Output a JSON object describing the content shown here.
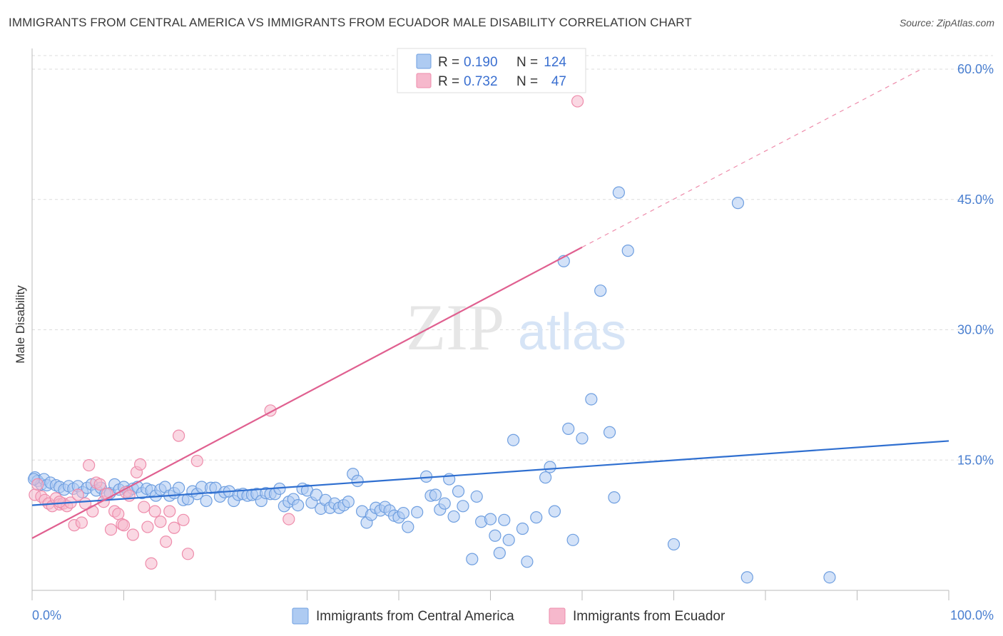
{
  "title": "IMMIGRANTS FROM CENTRAL AMERICA VS IMMIGRANTS FROM ECUADOR MALE DISABILITY CORRELATION CHART",
  "source": "Source: ZipAtlas.com",
  "watermark": {
    "zip": "ZIP",
    "atlas": "atlas"
  },
  "colors": {
    "blue_fill": "#aecbf2",
    "blue_stroke": "#6f9fe0",
    "blue_line": "#2f6fd0",
    "pink_fill": "#f6b8cc",
    "pink_stroke": "#ee8cab",
    "pink_line": "#e06090",
    "tick": "#4a7fd0",
    "grid": "#dddddd"
  },
  "legend_box": {
    "r_label": "R =",
    "n_label": "N =",
    "rows": [
      {
        "r": "0.190",
        "n": "124",
        "color": "blue"
      },
      {
        "r": "0.732",
        "n": "47",
        "color": "pink"
      }
    ]
  },
  "chart_data": {
    "type": "scatter",
    "ylabel": "Male Disability",
    "xlim": [
      0,
      100
    ],
    "ylim": [
      0,
      65
    ],
    "x_tick_labels": [
      "0.0%",
      "100.0%"
    ],
    "y_ticks": [
      15,
      30,
      45,
      60
    ],
    "y_tick_labels": [
      "15.0%",
      "30.0%",
      "45.0%",
      "60.0%"
    ],
    "grid": "horizontal dashed",
    "legend_position": "bottom",
    "series": [
      {
        "name": "Immigrants from Central America",
        "color": "blue",
        "r": 0.19,
        "n": 124,
        "trend": {
          "x": [
            0,
            100
          ],
          "y": [
            9.8,
            17.2
          ]
        },
        "points": [
          [
            0.3,
            13.0
          ],
          [
            0.6,
            12.6
          ],
          [
            1.0,
            12.2
          ],
          [
            1.3,
            12.8
          ],
          [
            1.6,
            12.1
          ],
          [
            2,
            12.4
          ],
          [
            2.6,
            12.1
          ],
          [
            3,
            11.9
          ],
          [
            3.5,
            11.6
          ],
          [
            4,
            12.0
          ],
          [
            4.5,
            11.7
          ],
          [
            5,
            12.0
          ],
          [
            5.5,
            11.3
          ],
          [
            6,
            11.8
          ],
          [
            6.5,
            12.2
          ],
          [
            7,
            11.5
          ],
          [
            7.5,
            11.8
          ],
          [
            8,
            11.1
          ],
          [
            8.5,
            11.2
          ],
          [
            9,
            12.2
          ],
          [
            9.5,
            11.6
          ],
          [
            10,
            11.9
          ],
          [
            10.5,
            11.4
          ],
          [
            11,
            11.7
          ],
          [
            11.5,
            11.9
          ],
          [
            12,
            11.2
          ],
          [
            12.5,
            11.7
          ],
          [
            13,
            11.5
          ],
          [
            13.5,
            10.9
          ],
          [
            14,
            11.6
          ],
          [
            14.5,
            11.9
          ],
          [
            15,
            10.9
          ],
          [
            15.5,
            11.2
          ],
          [
            16,
            11.8
          ],
          [
            16.5,
            10.4
          ],
          [
            17,
            10.5
          ],
          [
            17.5,
            11.4
          ],
          [
            18,
            11.1
          ],
          [
            18.5,
            11.9
          ],
          [
            19,
            10.3
          ],
          [
            19.5,
            11.8
          ],
          [
            20,
            11.8
          ],
          [
            20.5,
            10.8
          ],
          [
            21,
            11.3
          ],
          [
            21.5,
            11.4
          ],
          [
            22,
            10.3
          ],
          [
            22.5,
            11.0
          ],
          [
            23,
            11.1
          ],
          [
            23.5,
            10.9
          ],
          [
            24,
            11.0
          ],
          [
            24.5,
            11.1
          ],
          [
            25,
            10.3
          ],
          [
            25.5,
            11.2
          ],
          [
            26,
            11.1
          ],
          [
            26.5,
            11.1
          ],
          [
            27,
            11.7
          ],
          [
            27.5,
            9.7
          ],
          [
            28,
            10.2
          ],
          [
            28.5,
            10.5
          ],
          [
            29,
            9.8
          ],
          [
            29.5,
            11.7
          ],
          [
            30,
            11.5
          ],
          [
            30.5,
            10.1
          ],
          [
            31,
            11.0
          ],
          [
            31.5,
            9.4
          ],
          [
            32,
            10.4
          ],
          [
            32.5,
            9.5
          ],
          [
            33,
            10.0
          ],
          [
            33.5,
            9.5
          ],
          [
            34,
            9.8
          ],
          [
            34.5,
            10.2
          ],
          [
            35,
            13.4
          ],
          [
            35.5,
            12.6
          ],
          [
            36,
            9.1
          ],
          [
            36.5,
            7.8
          ],
          [
            37,
            8.7
          ],
          [
            37.5,
            9.5
          ],
          [
            38,
            9.2
          ],
          [
            38.5,
            9.6
          ],
          [
            39,
            9.2
          ],
          [
            39.5,
            8.6
          ],
          [
            40,
            8.4
          ],
          [
            40.5,
            8.9
          ],
          [
            41,
            7.3
          ],
          [
            42,
            9.0
          ],
          [
            43,
            13.1
          ],
          [
            43.5,
            10.9
          ],
          [
            44,
            11.0
          ],
          [
            44.5,
            9.3
          ],
          [
            45,
            10.0
          ],
          [
            45.5,
            12.8
          ],
          [
            46,
            8.5
          ],
          [
            46.5,
            11.4
          ],
          [
            47,
            9.7
          ],
          [
            48,
            3.6
          ],
          [
            48.5,
            10.8
          ],
          [
            49,
            7.9
          ],
          [
            50,
            8.2
          ],
          [
            50.5,
            6.3
          ],
          [
            51,
            4.3
          ],
          [
            51.5,
            8.1
          ],
          [
            52,
            5.8
          ],
          [
            52.5,
            17.3
          ],
          [
            53.5,
            7.1
          ],
          [
            54,
            3.3
          ],
          [
            55,
            8.4
          ],
          [
            56,
            13.0
          ],
          [
            56.5,
            14.2
          ],
          [
            57,
            9.1
          ],
          [
            58,
            37.9
          ],
          [
            58.5,
            18.6
          ],
          [
            59,
            5.8
          ],
          [
            60,
            17.5
          ],
          [
            61,
            22.0
          ],
          [
            62,
            34.5
          ],
          [
            63,
            18.2
          ],
          [
            63.5,
            10.7
          ],
          [
            64,
            45.8
          ],
          [
            65,
            39.1
          ],
          [
            70,
            5.3
          ],
          [
            77,
            44.6
          ],
          [
            78,
            1.5
          ],
          [
            87,
            1.5
          ],
          [
            0.2,
            12.8
          ]
        ]
      },
      {
        "name": "Immigrants from Ecuador",
        "color": "pink",
        "r": 0.732,
        "n": 47,
        "trend": {
          "x": [
            0,
            60
          ],
          "y": [
            6.0,
            39.5
          ]
        },
        "trend_dashed": {
          "x": [
            60,
            97
          ],
          "y": [
            39.5,
            60.0
          ]
        },
        "points": [
          [
            0.3,
            11.0
          ],
          [
            0.6,
            12.2
          ],
          [
            1,
            10.8
          ],
          [
            1.4,
            10.4
          ],
          [
            1.8,
            10.0
          ],
          [
            2.2,
            9.7
          ],
          [
            2.6,
            10.6
          ],
          [
            3,
            9.9
          ],
          [
            3.4,
            10.0
          ],
          [
            3.8,
            9.7
          ],
          [
            4.2,
            10.1
          ],
          [
            4.6,
            7.5
          ],
          [
            5,
            11.0
          ],
          [
            5.4,
            7.8
          ],
          [
            5.8,
            10.0
          ],
          [
            6.2,
            14.4
          ],
          [
            6.6,
            9.1
          ],
          [
            7,
            12.4
          ],
          [
            7.4,
            12.2
          ],
          [
            7.8,
            10.2
          ],
          [
            8.2,
            11.1
          ],
          [
            8.6,
            7.0
          ],
          [
            9,
            9.1
          ],
          [
            9.4,
            8.8
          ],
          [
            9.8,
            7.6
          ],
          [
            10.2,
            11.3
          ],
          [
            10.6,
            10.9
          ],
          [
            11,
            6.4
          ],
          [
            11.4,
            13.6
          ],
          [
            11.8,
            14.5
          ],
          [
            12.2,
            9.6
          ],
          [
            12.6,
            7.3
          ],
          [
            13,
            3.1
          ],
          [
            13.4,
            9.1
          ],
          [
            14,
            7.9
          ],
          [
            14.6,
            5.6
          ],
          [
            15,
            9.1
          ],
          [
            15.5,
            7.2
          ],
          [
            16,
            17.8
          ],
          [
            16.5,
            8.1
          ],
          [
            17,
            4.2
          ],
          [
            18,
            14.9
          ],
          [
            26,
            20.7
          ],
          [
            28,
            8.2
          ],
          [
            59.5,
            56.3
          ],
          [
            10,
            7.5
          ],
          [
            3,
            10.2
          ]
        ]
      }
    ]
  }
}
